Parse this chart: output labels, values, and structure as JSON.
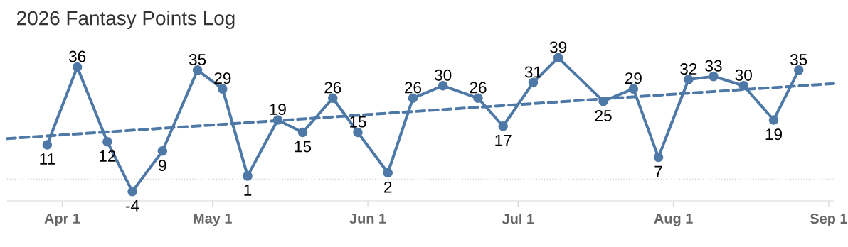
{
  "chart_data": {
    "type": "line",
    "title": "2026 Fantasy Points Log",
    "series": [
      {
        "color": "#4e79a7",
        "x": [
          "2026-03-29",
          "2026-04-04",
          "2026-04-10",
          "2026-04-15",
          "2026-04-21",
          "2026-04-28",
          "2026-05-03",
          "2026-05-08",
          "2026-05-14",
          "2026-05-19",
          "2026-05-25",
          "2026-05-30",
          "2026-06-05",
          "2026-06-10",
          "2026-06-16",
          "2026-06-23",
          "2026-06-28",
          "2026-07-04",
          "2026-07-09",
          "2026-07-18",
          "2026-07-24",
          "2026-07-29",
          "2026-08-04",
          "2026-08-09",
          "2026-08-15",
          "2026-08-21",
          "2026-08-26"
        ],
        "values": [
          11,
          36,
          12,
          -4,
          9,
          35,
          29,
          1,
          19,
          15,
          26,
          15,
          2,
          26,
          30,
          26,
          17,
          31,
          39,
          25,
          29,
          7,
          32,
          33,
          30,
          19,
          35
        ],
        "value_labels": [
          "11",
          "36",
          "12",
          "-4",
          "9",
          "35",
          "29",
          "1",
          "19",
          "15",
          "26",
          "15",
          "2",
          "26",
          "30",
          "26",
          "17",
          "31",
          "39",
          "25",
          "29",
          "7",
          "32",
          "33",
          "30",
          "19",
          "35"
        ]
      },
      {
        "type": "line",
        "color": "#4e79a7",
        "line_style": "dashed",
        "marker": "none",
        "x": [
          "2026-03-21",
          "2026-09-02"
        ],
        "values": [
          13,
          30.7
        ]
      }
    ],
    "xlim": [
      "2026-03-21",
      "2026-09-02"
    ],
    "xticks": [
      {
        "value": "2026-04-01",
        "label": "Apr 1"
      },
      {
        "value": "2026-05-01",
        "label": "May 1"
      },
      {
        "value": "2026-06-01",
        "label": "Jun 1"
      },
      {
        "value": "2026-07-01",
        "label": "Jul 1"
      },
      {
        "value": "2026-08-01",
        "label": "Aug 1"
      },
      {
        "value": "2026-09-01",
        "label": "Sep 1"
      }
    ],
    "tick_labels": "x",
    "ref_lines": [
      {
        "axis": "y",
        "value": 0,
        "color": "#bbbbbb",
        "line_style": "dotted"
      }
    ],
    "marker": "circle",
    "line_style": "solid"
  }
}
